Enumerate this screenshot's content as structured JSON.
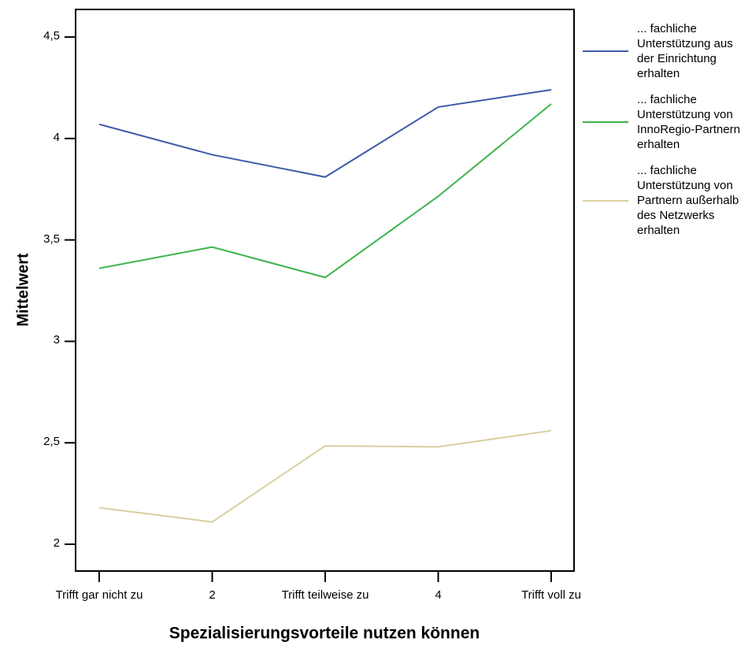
{
  "chart_data": {
    "type": "line",
    "x_label": "Spezialisierungsvorteile nutzen können",
    "y_label": "Mittelwert",
    "categories": [
      "Trifft gar nicht zu",
      "2",
      "Trifft teilweise zu",
      "4",
      "Trifft voll zu"
    ],
    "series": [
      {
        "name": "... fachliche Unterstützung aus der Einrichtung erhalten",
        "color": "#3f5aa8",
        "values": [
          4.07,
          3.92,
          3.81,
          4.155,
          4.24
        ]
      },
      {
        "name": "... fachliche Unterstützung von InnoRegio-Partnern erhalten",
        "color": "#3cb44a",
        "values": [
          3.36,
          3.465,
          3.315,
          3.715,
          4.17
        ]
      },
      {
        "name": "... fachliche Unterstützung von Partnern außerhalb des Netzwerks erhalten",
        "color": "#d9cfa0",
        "values": [
          2.18,
          2.11,
          2.485,
          2.48,
          2.56
        ]
      }
    ],
    "ylim": [
      1.868,
      4.636
    ],
    "yticks": [
      2,
      {
        "value": 2.5,
        "label": "2,5"
      },
      3,
      {
        "value": 3.5,
        "label": "3,5"
      },
      4,
      {
        "value": 4.5,
        "label": "4,5"
      }
    ],
    "legend": "right"
  }
}
